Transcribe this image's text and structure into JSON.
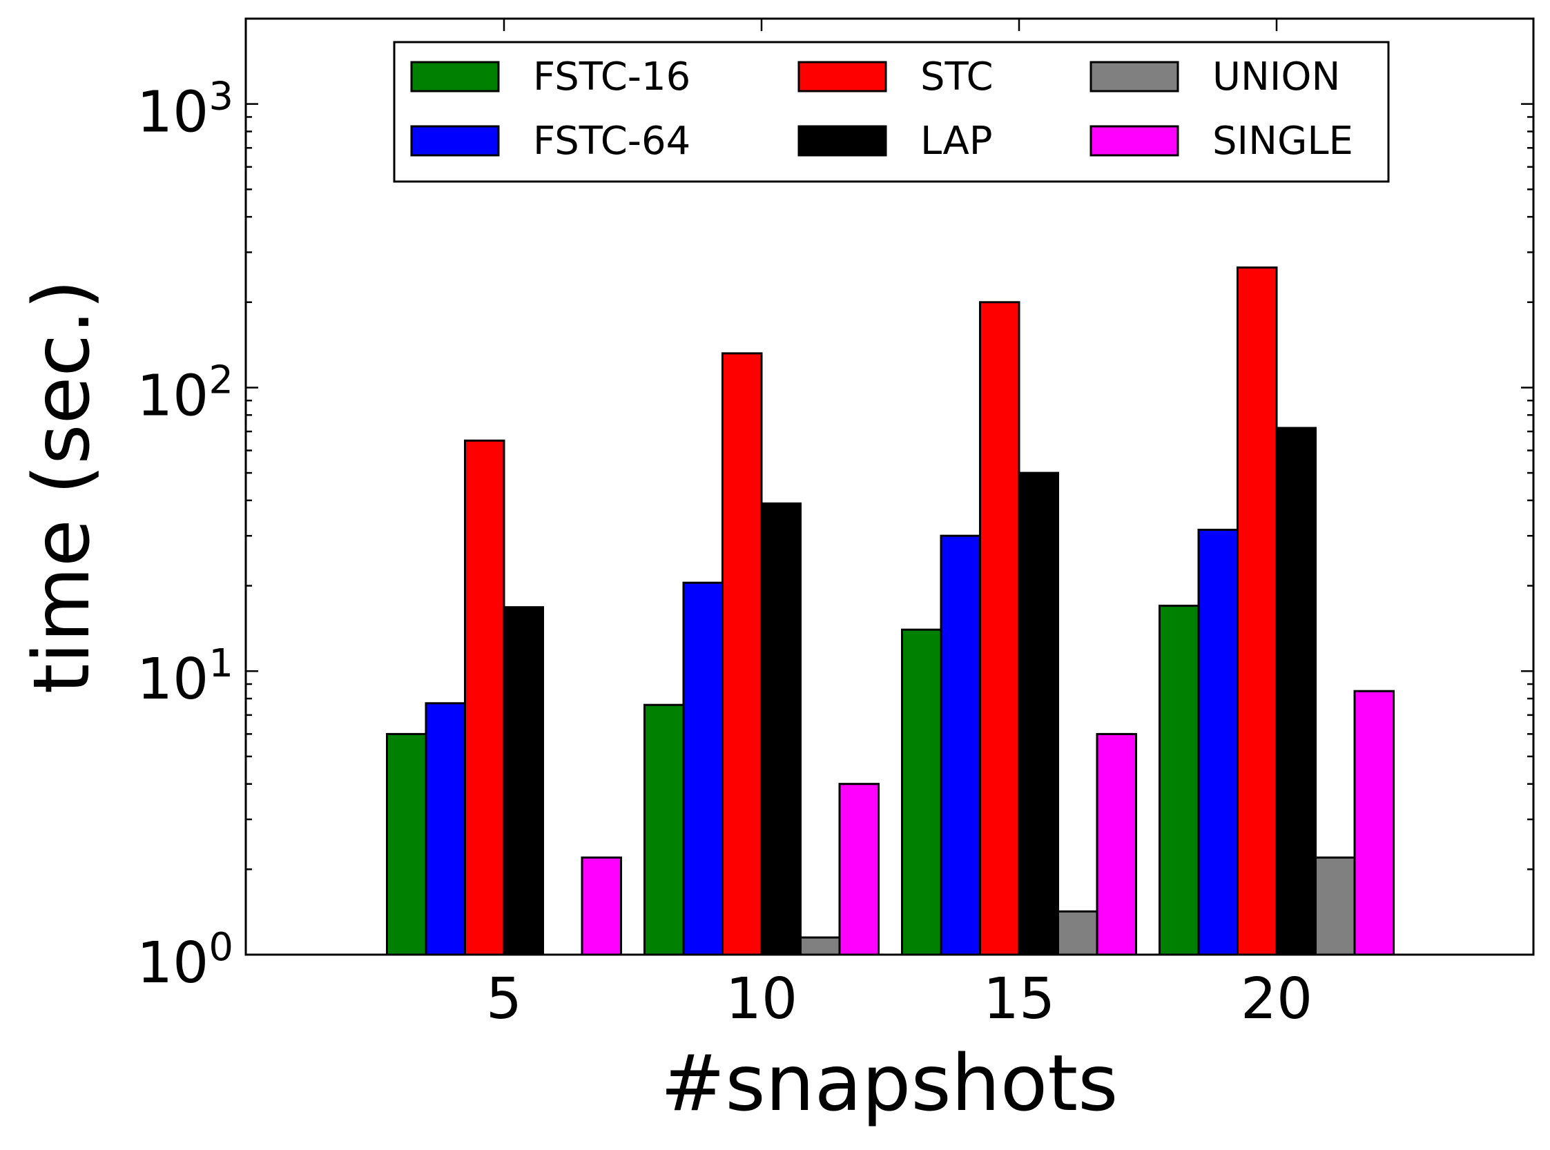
{
  "chart_data": {
    "type": "bar",
    "title": "",
    "xlabel": "#snapshots",
    "ylabel": "time (sec.)",
    "yscale": "log",
    "ylim": [
      1,
      2000
    ],
    "yticks": [
      {
        "value": 1,
        "base": "10",
        "exp": "0"
      },
      {
        "value": 10,
        "base": "10",
        "exp": "1"
      },
      {
        "value": 100,
        "base": "10",
        "exp": "2"
      },
      {
        "value": 1000,
        "base": "10",
        "exp": "3"
      }
    ],
    "categories": [
      "5",
      "10",
      "15",
      "20"
    ],
    "grid": false,
    "legend_position": "top-center",
    "series": [
      {
        "name": "FSTC-16",
        "color": "#008000",
        "values": [
          6.0,
          7.6,
          14.0,
          17.0
        ]
      },
      {
        "name": "FSTC-64",
        "color": "#0000ff",
        "values": [
          7.7,
          20.5,
          30.0,
          31.5
        ]
      },
      {
        "name": "STC",
        "color": "#ff0000",
        "values": [
          65,
          132,
          200,
          265
        ]
      },
      {
        "name": "LAP",
        "color": "#000000",
        "values": [
          16.8,
          39,
          50,
          72
        ]
      },
      {
        "name": "UNION",
        "color": "#808080",
        "values": [
          null,
          1.15,
          1.42,
          2.2
        ]
      },
      {
        "name": "SINGLE",
        "color": "#ff00ff",
        "values": [
          2.2,
          4.0,
          6.0,
          8.5
        ]
      }
    ]
  }
}
